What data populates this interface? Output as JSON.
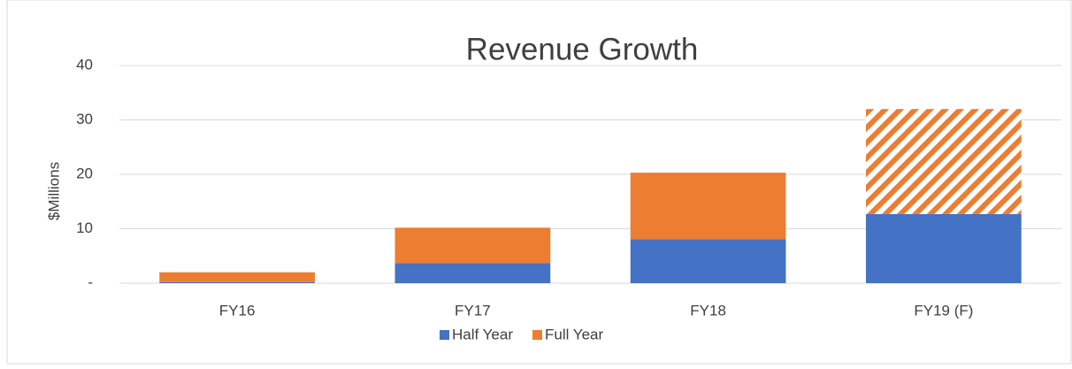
{
  "chart_data": {
    "type": "stacked_bar",
    "title": "Revenue Growth",
    "ylabel": "$Millions",
    "categories": [
      "FY16",
      "FY17",
      "FY18",
      "FY19 (F)"
    ],
    "series": [
      {
        "name": "Half Year",
        "color": "#4472c4",
        "values": [
          0.2,
          3.7,
          8.1,
          12.7
        ]
      },
      {
        "name": "Full Year",
        "color": "#ed7d31",
        "values": [
          1.8,
          6.5,
          12.2,
          19.3
        ],
        "hatched": [
          false,
          false,
          false,
          true
        ]
      }
    ],
    "ylim": [
      0,
      40
    ],
    "yticks": [
      {
        "value": 0,
        "label": "-"
      },
      10,
      20,
      30,
      40
    ],
    "grid": true,
    "legend": "bottom"
  }
}
